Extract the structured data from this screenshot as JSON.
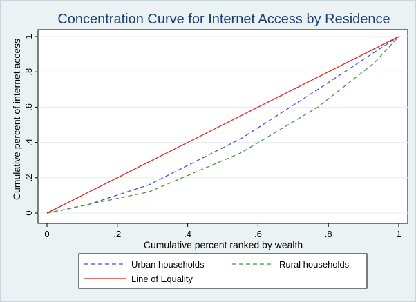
{
  "chart_data": {
    "type": "line",
    "title": "Concentration Curve for Internet Access by Residence",
    "xlabel": "Cumulative percent ranked by wealth",
    "ylabel": "Cumulative percent of internet access",
    "xlim": [
      0,
      1
    ],
    "ylim": [
      0,
      1
    ],
    "x_ticks": [
      0,
      0.2,
      0.4,
      0.6,
      0.8,
      1
    ],
    "x_tick_labels": [
      "0",
      ".2",
      ".4",
      ".6",
      ".8",
      "1"
    ],
    "y_ticks": [
      0,
      0.2,
      0.4,
      0.6,
      0.8,
      1
    ],
    "y_tick_labels": [
      "0",
      ".2",
      ".4",
      ".6",
      ".8",
      "1"
    ],
    "grid": "horizontal",
    "legend_position": "bottom",
    "series": [
      {
        "name": "Urban households",
        "color": "#4b4fd8",
        "style": "dashed",
        "x": [
          0,
          0.05,
          0.12,
          0.29,
          0.55,
          0.77,
          0.93,
          1
        ],
        "y": [
          0,
          0.02,
          0.05,
          0.16,
          0.42,
          0.7,
          0.91,
          1
        ]
      },
      {
        "name": "Rural households",
        "color": "#3d9a3d",
        "style": "dashed",
        "x": [
          0,
          0.05,
          0.12,
          0.29,
          0.55,
          0.77,
          0.93,
          1
        ],
        "y": [
          0,
          0.02,
          0.05,
          0.12,
          0.34,
          0.6,
          0.85,
          1
        ]
      },
      {
        "name": "Line of Equality",
        "color": "#e0201b",
        "style": "solid",
        "x": [
          0,
          1
        ],
        "y": [
          0,
          1
        ]
      }
    ]
  }
}
